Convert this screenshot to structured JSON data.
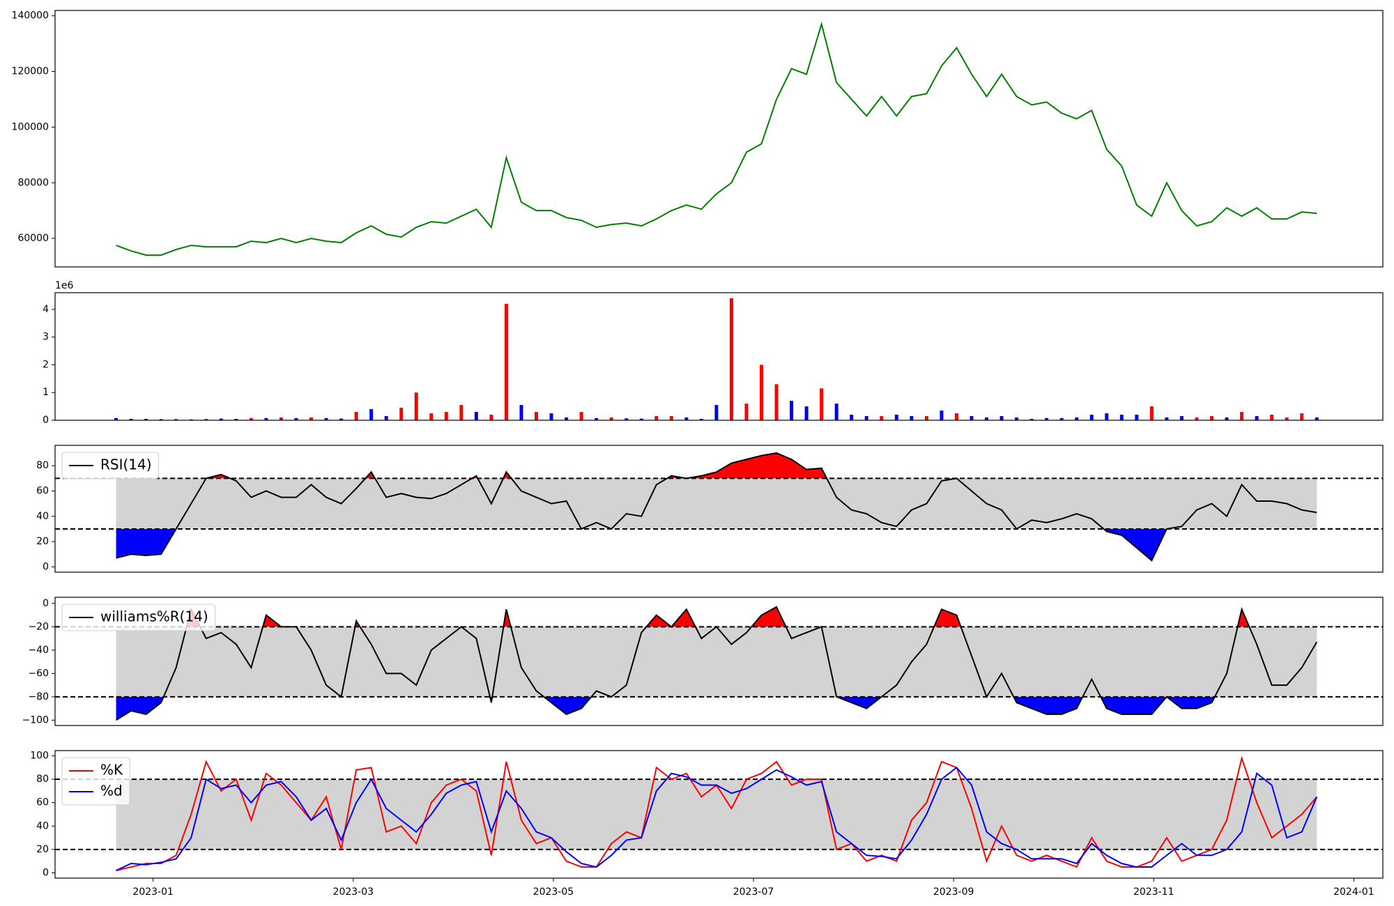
{
  "chart_data": [
    {
      "type": "line",
      "color": "#008000",
      "x": [
        -0.37,
        -0.22,
        -0.07,
        0.08,
        0.23,
        0.38,
        0.53,
        0.68,
        0.83,
        0.98,
        1.13,
        1.28,
        1.43,
        1.58,
        1.73,
        1.88,
        2.03,
        2.18,
        2.33,
        2.48,
        2.63,
        2.78,
        2.93,
        3.08,
        3.23,
        3.38,
        3.53,
        3.68,
        3.83,
        3.98,
        4.13,
        4.28,
        4.43,
        4.58,
        4.73,
        4.88,
        5.03,
        5.18,
        5.33,
        5.48,
        5.63,
        5.78,
        5.93,
        6.08,
        6.23,
        6.38,
        6.53,
        6.68,
        6.83,
        6.98,
        7.13,
        7.28,
        7.43,
        7.58,
        7.73,
        7.88,
        8.03,
        8.18,
        8.33,
        8.48,
        8.63,
        8.78,
        8.93,
        9.08,
        9.23,
        9.38,
        9.53,
        9.68,
        9.83,
        9.98,
        10.13,
        10.28,
        10.43,
        10.58,
        10.73,
        10.88,
        11.03,
        11.18,
        11.33,
        11.48,
        11.63
      ],
      "values": [
        57500,
        55500,
        54000,
        54000,
        56000,
        57500,
        57000,
        57000,
        57000,
        59000,
        58500,
        60000,
        58500,
        60000,
        59000,
        58500,
        62000,
        64500,
        61500,
        60500,
        64000,
        66000,
        65500,
        68000,
        70500,
        64000,
        89000,
        73000,
        70000,
        70000,
        67500,
        66500,
        64000,
        65000,
        65500,
        64500,
        67000,
        70000,
        72000,
        70500,
        76000,
        80000,
        91000,
        94000,
        110000,
        121000,
        119000,
        137000,
        116000,
        110000,
        104000,
        111000,
        104000,
        111000,
        112000,
        122000,
        128500,
        119000,
        111000,
        119000,
        111000,
        108000,
        109000,
        105000,
        103000,
        106000,
        92000,
        86000,
        72000,
        68000,
        80000,
        70000,
        64500,
        66000,
        71000,
        68000,
        71000,
        67000,
        67000,
        69500,
        69000
      ],
      "xlim": [
        -0.98,
        12.29
      ],
      "ylim": [
        49760,
        141920
      ],
      "yticks": [
        60000,
        80000,
        100000,
        120000,
        140000
      ]
    },
    {
      "type": "bar",
      "offset_label": "1e6",
      "x": [
        -0.37,
        -0.22,
        -0.07,
        0.08,
        0.23,
        0.38,
        0.53,
        0.68,
        0.83,
        0.98,
        1.13,
        1.28,
        1.43,
        1.58,
        1.73,
        1.88,
        2.03,
        2.18,
        2.33,
        2.48,
        2.63,
        2.78,
        2.93,
        3.08,
        3.23,
        3.38,
        3.53,
        3.68,
        3.83,
        3.98,
        4.13,
        4.28,
        4.43,
        4.58,
        4.73,
        4.88,
        5.03,
        5.18,
        5.33,
        5.48,
        5.63,
        5.78,
        5.93,
        6.08,
        6.23,
        6.38,
        6.53,
        6.68,
        6.83,
        6.98,
        7.13,
        7.28,
        7.43,
        7.58,
        7.73,
        7.88,
        8.03,
        8.18,
        8.33,
        8.48,
        8.63,
        8.78,
        8.93,
        9.08,
        9.23,
        9.38,
        9.53,
        9.68,
        9.83,
        9.98,
        10.13,
        10.28,
        10.43,
        10.58,
        10.73,
        10.88,
        11.03,
        11.18,
        11.33,
        11.48,
        11.63
      ],
      "values": [
        0.08,
        0.05,
        0.05,
        0.04,
        0.04,
        0.03,
        0.05,
        0.06,
        0.05,
        0.08,
        0.08,
        0.1,
        0.08,
        0.1,
        0.08,
        0.06,
        0.3,
        0.4,
        0.15,
        0.45,
        1.0,
        0.25,
        0.3,
        0.55,
        0.3,
        0.2,
        4.2,
        0.55,
        0.3,
        0.25,
        0.1,
        0.3,
        0.08,
        0.1,
        0.07,
        0.06,
        0.15,
        0.15,
        0.1,
        0.05,
        0.55,
        4.4,
        0.6,
        2.0,
        1.3,
        0.7,
        0.5,
        1.15,
        0.6,
        0.2,
        0.15,
        0.15,
        0.2,
        0.15,
        0.15,
        0.35,
        0.25,
        0.15,
        0.1,
        0.15,
        0.1,
        0.05,
        0.08,
        0.08,
        0.1,
        0.2,
        0.25,
        0.2,
        0.2,
        0.5,
        0.1,
        0.15,
        0.1,
        0.15,
        0.1,
        0.3,
        0.15,
        0.2,
        0.1,
        0.25,
        0.1
      ],
      "colors": [
        "#0000ff",
        "#0000ff",
        "#0000ff",
        "#0000ff",
        "#0000ff",
        "#0000ff",
        "#ff0000",
        "#0000ff",
        "#0000ff",
        "#ff0000",
        "#0000ff",
        "#ff0000",
        "#0000ff",
        "#ff0000",
        "#0000ff",
        "#0000ff",
        "#ff0000",
        "#0000ff",
        "#0000ff",
        "#ff0000",
        "#ff0000",
        "#ff0000",
        "#ff0000",
        "#ff0000",
        "#0000ff",
        "#ff0000",
        "#ff0000",
        "#0000ff",
        "#ff0000",
        "#0000ff",
        "#0000ff",
        "#ff0000",
        "#0000ff",
        "#ff0000",
        "#0000ff",
        "#0000ff",
        "#ff0000",
        "#ff0000",
        "#0000ff",
        "#0000ff",
        "#0000ff",
        "#ff0000",
        "#ff0000",
        "#ff0000",
        "#ff0000",
        "#0000ff",
        "#0000ff",
        "#ff0000",
        "#0000ff",
        "#0000ff",
        "#0000ff",
        "#ff0000",
        "#0000ff",
        "#0000ff",
        "#ff0000",
        "#0000ff",
        "#ff0000",
        "#0000ff",
        "#0000ff",
        "#0000ff",
        "#0000ff",
        "#0000ff",
        "#0000ff",
        "#0000ff",
        "#0000ff",
        "#0000ff",
        "#0000ff",
        "#0000ff",
        "#0000ff",
        "#ff0000",
        "#0000ff",
        "#0000ff",
        "#ff0000",
        "#ff0000",
        "#0000ff",
        "#ff0000",
        "#0000ff",
        "#ff0000",
        "#ff0000",
        "#ff0000",
        "#0000ff"
      ],
      "xlim": [
        -0.98,
        12.29
      ],
      "ylim": [
        0,
        4.6
      ],
      "yticks": [
        0,
        1,
        2,
        3,
        4
      ]
    },
    {
      "type": "band",
      "upper": 70,
      "lower": 30,
      "band_color": "#d3d3d3",
      "above_color": "#ff0000",
      "below_color": "#0000ff",
      "legend": "upper left",
      "x": [
        -0.37,
        -0.22,
        -0.07,
        0.08,
        0.23,
        0.38,
        0.53,
        0.68,
        0.83,
        0.98,
        1.13,
        1.28,
        1.43,
        1.58,
        1.73,
        1.88,
        2.03,
        2.18,
        2.33,
        2.48,
        2.63,
        2.78,
        2.93,
        3.08,
        3.23,
        3.38,
        3.53,
        3.68,
        3.83,
        3.98,
        4.13,
        4.28,
        4.43,
        4.58,
        4.73,
        4.88,
        5.03,
        5.18,
        5.33,
        5.48,
        5.63,
        5.78,
        5.93,
        6.08,
        6.23,
        6.38,
        6.53,
        6.68,
        6.83,
        6.98,
        7.13,
        7.28,
        7.43,
        7.58,
        7.73,
        7.88,
        8.03,
        8.18,
        8.33,
        8.48,
        8.63,
        8.78,
        8.93,
        9.08,
        9.23,
        9.38,
        9.53,
        9.68,
        9.83,
        9.98,
        10.13,
        10.28,
        10.43,
        10.58,
        10.73,
        10.88,
        11.03,
        11.18,
        11.33,
        11.48,
        11.63
      ],
      "series": [
        {
          "name": "RSI(14)",
          "color": "#000000",
          "values": [
            7,
            10,
            9,
            10,
            30,
            50,
            70,
            73,
            68,
            55,
            60,
            55,
            55,
            65,
            55,
            50,
            62,
            75,
            55,
            58,
            55,
            54,
            58,
            65,
            72,
            50,
            75,
            60,
            55,
            50,
            52,
            30,
            35,
            30,
            42,
            40,
            65,
            72,
            70,
            72,
            75,
            82,
            85,
            88,
            90,
            85,
            77,
            78,
            55,
            45,
            42,
            35,
            32,
            45,
            50,
            68,
            70,
            60,
            50,
            45,
            30,
            37,
            35,
            38,
            42,
            38,
            28,
            25,
            15,
            5,
            30,
            32,
            45,
            50,
            40,
            65,
            52,
            52,
            50,
            45,
            43
          ]
        }
      ],
      "xlim": [
        -0.98,
        12.29
      ],
      "ylim": [
        -4.2,
        96.1
      ],
      "yticks": [
        0,
        20,
        40,
        60,
        80
      ]
    },
    {
      "type": "band",
      "upper": -20,
      "lower": -80,
      "band_color": "#d3d3d3",
      "above_color": "#ff0000",
      "below_color": "#0000ff",
      "legend": "upper left",
      "x": [
        -0.37,
        -0.22,
        -0.07,
        0.08,
        0.23,
        0.38,
        0.53,
        0.68,
        0.83,
        0.98,
        1.13,
        1.28,
        1.43,
        1.58,
        1.73,
        1.88,
        2.03,
        2.18,
        2.33,
        2.48,
        2.63,
        2.78,
        2.93,
        3.08,
        3.23,
        3.38,
        3.53,
        3.68,
        3.83,
        3.98,
        4.13,
        4.28,
        4.43,
        4.58,
        4.73,
        4.88,
        5.03,
        5.18,
        5.33,
        5.48,
        5.63,
        5.78,
        5.93,
        6.08,
        6.23,
        6.38,
        6.53,
        6.68,
        6.83,
        6.98,
        7.13,
        7.28,
        7.43,
        7.58,
        7.73,
        7.88,
        8.03,
        8.18,
        8.33,
        8.48,
        8.63,
        8.78,
        8.93,
        9.08,
        9.23,
        9.38,
        9.53,
        9.68,
        9.83,
        9.98,
        10.13,
        10.28,
        10.43,
        10.58,
        10.73,
        10.88,
        11.03,
        11.18,
        11.33,
        11.48,
        11.63
      ],
      "series": [
        {
          "name": "williams%R(14)",
          "color": "#000000",
          "values": [
            -100,
            -92,
            -95,
            -85,
            -55,
            -5,
            -30,
            -25,
            -35,
            -55,
            -10,
            -20,
            -20,
            -40,
            -70,
            -80,
            -15,
            -35,
            -60,
            -60,
            -70,
            -40,
            -30,
            -20,
            -30,
            -85,
            -5,
            -55,
            -75,
            -85,
            -95,
            -90,
            -75,
            -80,
            -70,
            -25,
            -10,
            -20,
            -5,
            -30,
            -20,
            -35,
            -25,
            -10,
            -3,
            -30,
            -25,
            -20,
            -80,
            -85,
            -90,
            -80,
            -70,
            -50,
            -35,
            -5,
            -10,
            -45,
            -80,
            -60,
            -85,
            -90,
            -95,
            -95,
            -90,
            -65,
            -90,
            -95,
            -95,
            -95,
            -80,
            -90,
            -90,
            -85,
            -60,
            -5,
            -35,
            -70,
            -70,
            -55,
            -33
          ]
        }
      ],
      "xlim": [
        -0.98,
        12.29
      ],
      "ylim": [
        -104.6,
        5.3
      ],
      "yticks": [
        {
          "value": -100,
          "label": "−100"
        },
        {
          "value": -80,
          "label": "−80"
        },
        {
          "value": -60,
          "label": "−60"
        },
        {
          "value": -40,
          "label": "−40"
        },
        {
          "value": -20,
          "label": "−20"
        },
        0
      ]
    },
    {
      "type": "band",
      "upper": 80,
      "lower": 20,
      "band_color": "#d3d3d3",
      "legend": "upper left",
      "x": [
        -0.37,
        -0.22,
        -0.07,
        0.08,
        0.23,
        0.38,
        0.53,
        0.68,
        0.83,
        0.98,
        1.13,
        1.28,
        1.43,
        1.58,
        1.73,
        1.88,
        2.03,
        2.18,
        2.33,
        2.48,
        2.63,
        2.78,
        2.93,
        3.08,
        3.23,
        3.38,
        3.53,
        3.68,
        3.83,
        3.98,
        4.13,
        4.28,
        4.43,
        4.58,
        4.73,
        4.88,
        5.03,
        5.18,
        5.33,
        5.48,
        5.63,
        5.78,
        5.93,
        6.08,
        6.23,
        6.38,
        6.53,
        6.68,
        6.83,
        6.98,
        7.13,
        7.28,
        7.43,
        7.58,
        7.73,
        7.88,
        8.03,
        8.18,
        8.33,
        8.48,
        8.63,
        8.78,
        8.93,
        9.08,
        9.23,
        9.38,
        9.53,
        9.68,
        9.83,
        9.98,
        10.13,
        10.28,
        10.43,
        10.58,
        10.73,
        10.88,
        11.03,
        11.18,
        11.33,
        11.48,
        11.63
      ],
      "series": [
        {
          "name": "%K",
          "color": "#ff0000",
          "values": [
            2,
            5,
            8,
            8,
            15,
            50,
            95,
            70,
            80,
            45,
            85,
            75,
            60,
            45,
            65,
            20,
            88,
            90,
            35,
            40,
            25,
            60,
            75,
            80,
            70,
            15,
            95,
            45,
            25,
            30,
            10,
            5,
            5,
            25,
            35,
            30,
            90,
            80,
            85,
            65,
            75,
            55,
            80,
            85,
            95,
            75,
            80,
            80,
            20,
            25,
            10,
            15,
            10,
            45,
            60,
            95,
            90,
            55,
            10,
            40,
            15,
            10,
            15,
            10,
            5,
            30,
            10,
            5,
            5,
            10,
            30,
            10,
            15,
            20,
            45,
            98,
            60,
            30,
            40,
            50,
            65
          ]
        },
        {
          "name": "%d",
          "color": "#0000ff",
          "values": [
            2,
            8,
            7,
            9,
            12,
            30,
            80,
            72,
            75,
            60,
            75,
            78,
            65,
            45,
            55,
            28,
            60,
            80,
            55,
            45,
            35,
            50,
            68,
            75,
            78,
            35,
            70,
            55,
            35,
            30,
            18,
            8,
            5,
            15,
            28,
            30,
            70,
            85,
            82,
            75,
            75,
            68,
            72,
            80,
            88,
            82,
            75,
            78,
            35,
            25,
            15,
            14,
            12,
            28,
            50,
            80,
            90,
            75,
            35,
            25,
            20,
            12,
            12,
            12,
            8,
            25,
            15,
            8,
            5,
            5,
            15,
            25,
            15,
            15,
            20,
            35,
            85,
            75,
            30,
            35,
            65
          ]
        }
      ],
      "xlim": [
        -0.98,
        12.29
      ],
      "ylim": [
        -4.5,
        104.5
      ],
      "yticks": [
        0,
        20,
        40,
        60,
        80,
        100
      ],
      "xticks": [
        {
          "value": 0,
          "label": "2023-01"
        },
        {
          "value": 2,
          "label": "2023-03"
        },
        {
          "value": 4,
          "label": "2023-05"
        },
        {
          "value": 6,
          "label": "2023-07"
        },
        {
          "value": 8,
          "label": "2023-09"
        },
        {
          "value": 10,
          "label": "2023-11"
        },
        {
          "value": 12,
          "label": "2024-01"
        }
      ]
    }
  ]
}
